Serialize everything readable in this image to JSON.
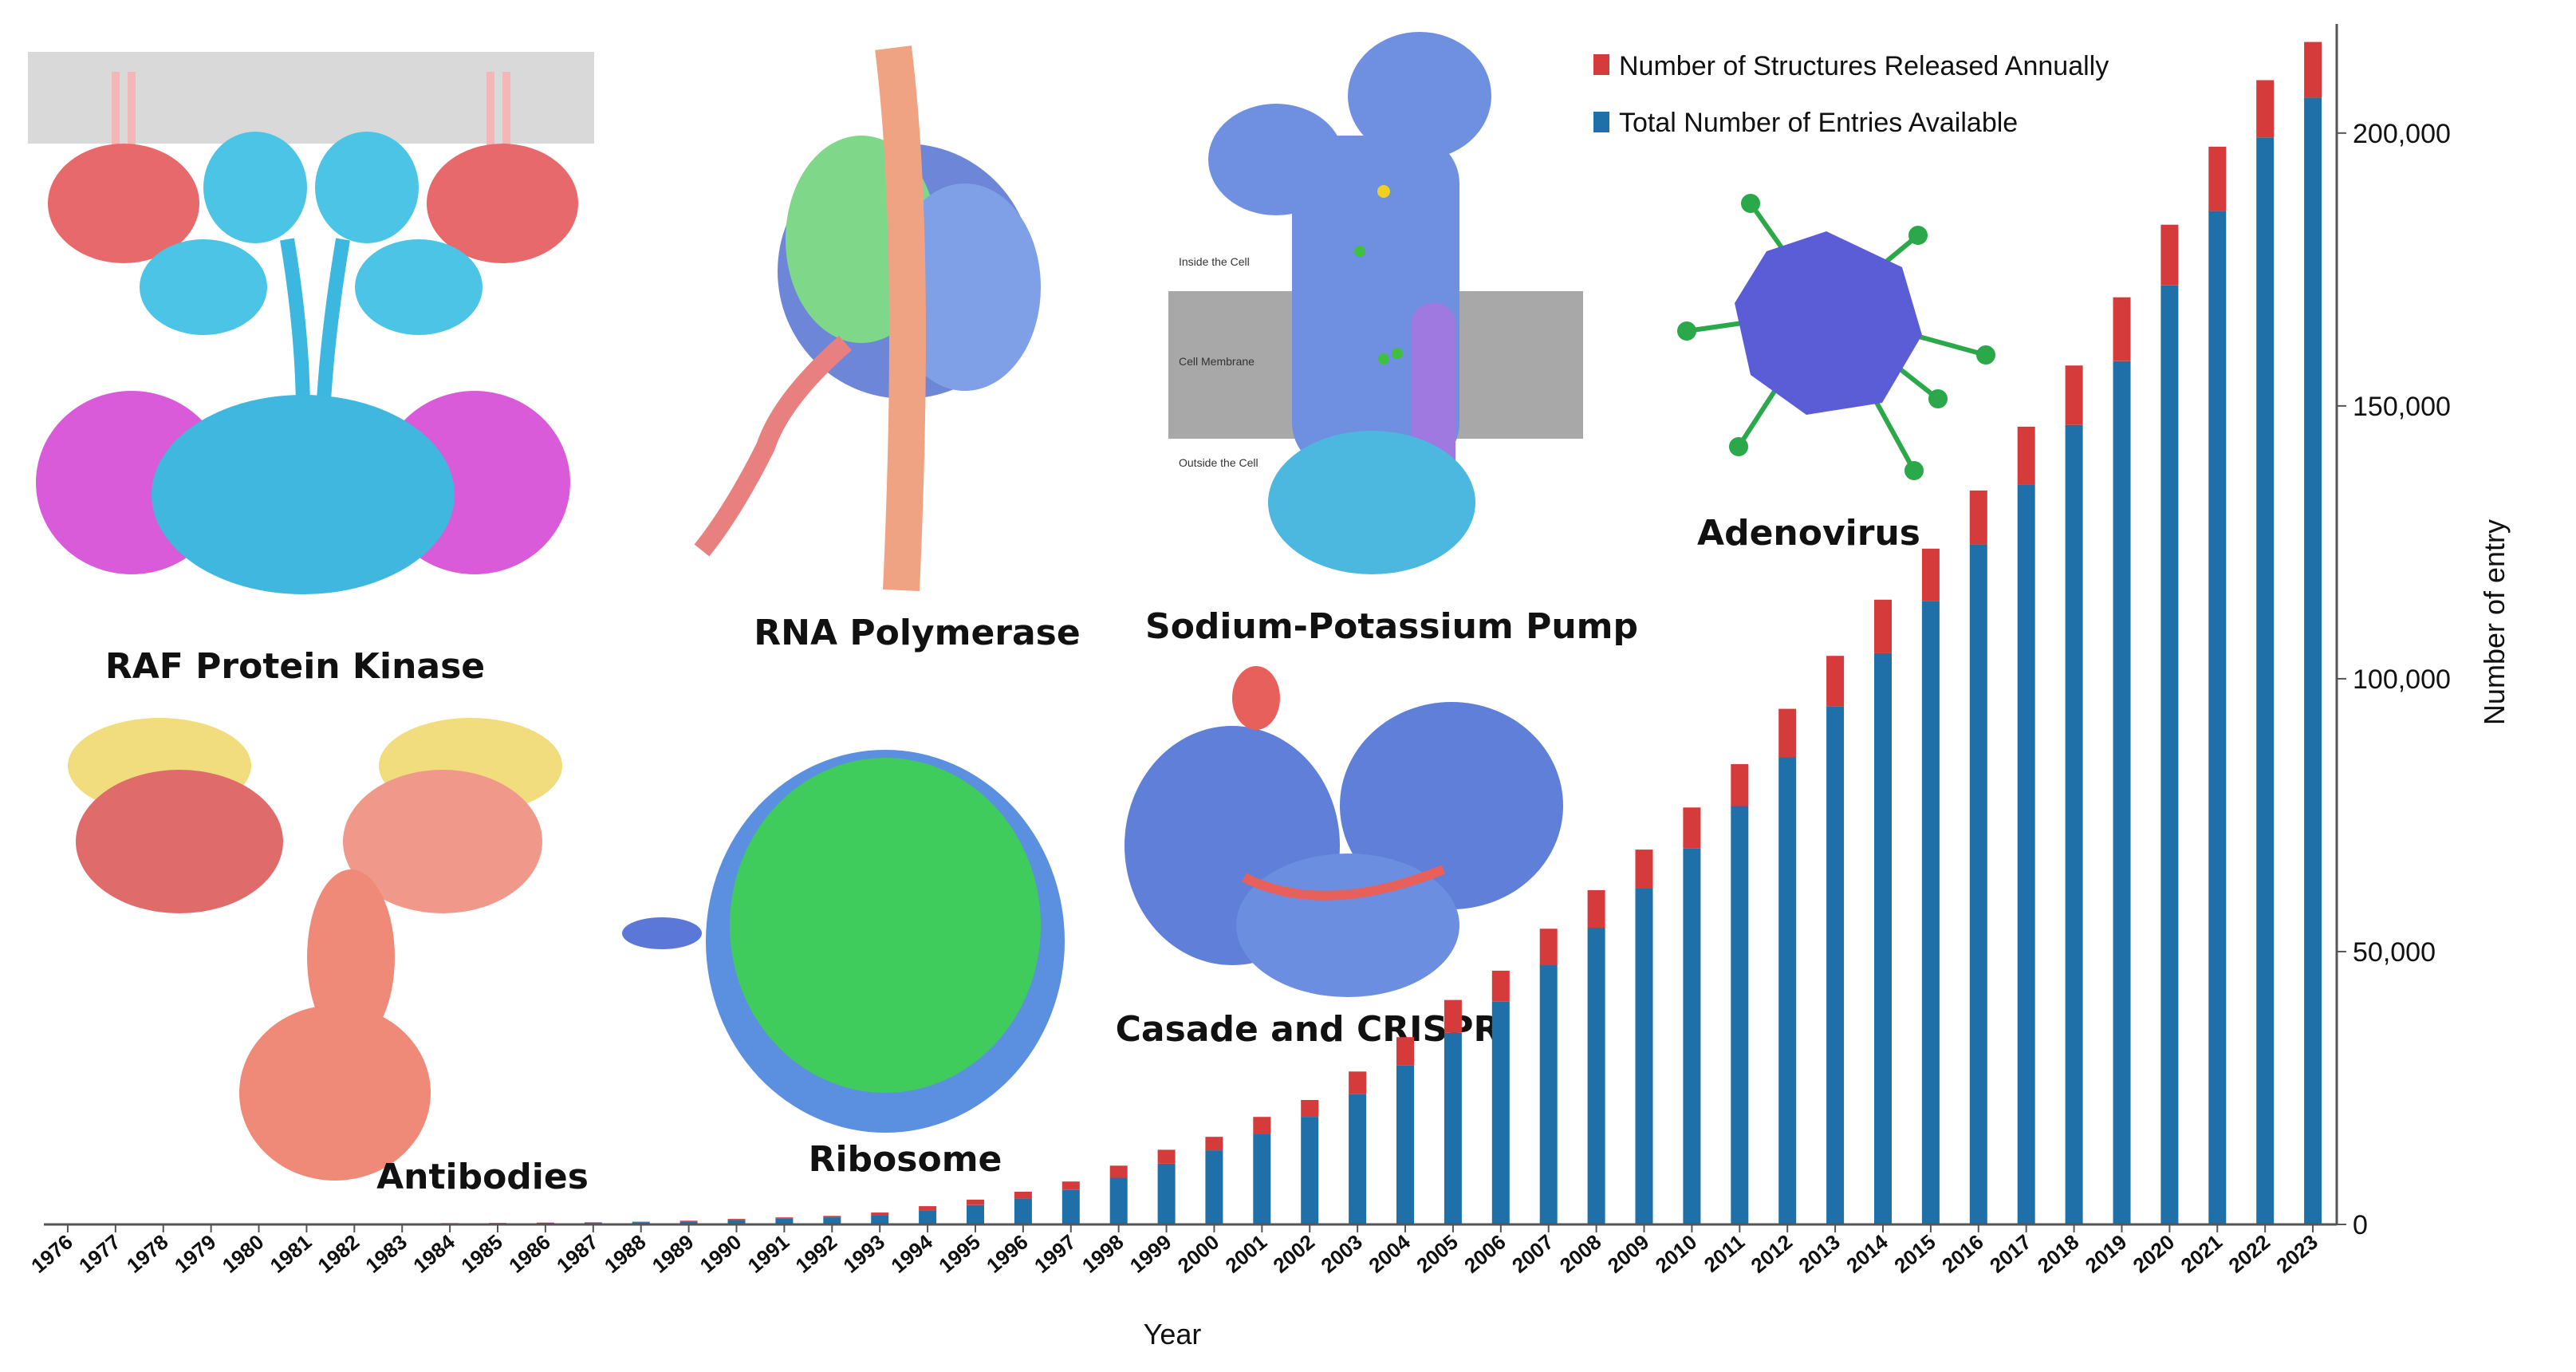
{
  "chart_data": {
    "type": "bar",
    "stacked": true,
    "xlabel": "Year",
    "ylabel": "Number of entry",
    "ylim": [
      0,
      220000
    ],
    "yticks": [
      0,
      50000,
      100000,
      150000,
      200000
    ],
    "ytick_labels": [
      "0",
      "50,000",
      "100,000",
      "150,000",
      "200,000"
    ],
    "y_axis_side": "right",
    "grid": false,
    "legend_position": "top-right",
    "categories": [
      "1976",
      "1977",
      "1978",
      "1979",
      "1980",
      "1981",
      "1982",
      "1983",
      "1984",
      "1985",
      "1986",
      "1987",
      "1988",
      "1989",
      "1990",
      "1991",
      "1992",
      "1993",
      "1994",
      "1995",
      "1996",
      "1997",
      "1998",
      "1999",
      "2000",
      "2001",
      "2002",
      "2003",
      "2004",
      "2005",
      "2006",
      "2007",
      "2008",
      "2009",
      "2010",
      "2011",
      "2012",
      "2013",
      "2014",
      "2015",
      "2016",
      "2017",
      "2018",
      "2019",
      "2020",
      "2021",
      "2022",
      "2023"
    ],
    "series": [
      {
        "name": "Total Number of Entries Available",
        "color": "#1f6fa8",
        "values": [
          13,
          36,
          48,
          57,
          71,
          87,
          111,
          152,
          201,
          248,
          298,
          348,
          422,
          557,
          784,
          1032,
          1297,
          1735,
          2542,
          3541,
          4770,
          6320,
          8550,
          11113,
          13580,
          16645,
          19722,
          23874,
          29097,
          35118,
          40811,
          47503,
          54383,
          61536,
          68969,
          76668,
          85581,
          94886,
          104688,
          114268,
          124600,
          135600,
          146500,
          158200,
          172100,
          185700,
          199200,
          206500
        ]
      },
      {
        "name": "Number of Structures Released Annually",
        "color": "#d63b3b",
        "values": [
          13,
          23,
          12,
          9,
          14,
          16,
          24,
          41,
          49,
          47,
          50,
          50,
          74,
          135,
          227,
          248,
          265,
          438,
          807,
          999,
          1229,
          1550,
          2230,
          2563,
          2467,
          3065,
          3077,
          4152,
          5223,
          6021,
          5693,
          6692,
          6880,
          7153,
          7433,
          7699,
          8913,
          9305,
          9802,
          9580,
          9900,
          10600,
          10900,
          11700,
          11100,
          11800,
          10500,
          10200
        ]
      }
    ]
  },
  "legend": {
    "items": [
      {
        "label": "Number of Structures Released Annually",
        "color": "#d63b3b"
      },
      {
        "label": "Total Number of Entries Available",
        "color": "#1f6fa8"
      }
    ]
  },
  "images": {
    "raf": "RAF Protein Kinase",
    "rna": "RNA Polymerase",
    "pump": "Sodium-Potassium Pump",
    "adeno": "Adenovirus",
    "antibodies": "Antibodies",
    "ribosome": "Ribosome",
    "casade": "Casade and CRISPR"
  },
  "pump_labels": {
    "inside": "Inside the Cell",
    "membrane": "Cell Membrane",
    "outside": "Outside the Cell"
  }
}
